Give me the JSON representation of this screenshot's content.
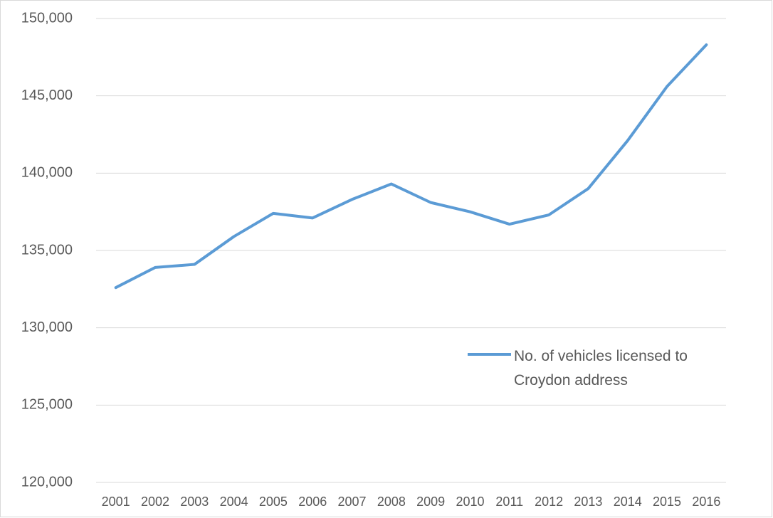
{
  "chart_data": {
    "type": "line",
    "categories": [
      "2001",
      "2002",
      "2003",
      "2004",
      "2005",
      "2006",
      "2007",
      "2008",
      "2009",
      "2010",
      "2011",
      "2012",
      "2013",
      "2014",
      "2015",
      "2016"
    ],
    "series": [
      {
        "name": "No. of vehicles licensed to Croydon address",
        "color": "#5b9bd5",
        "values": [
          132600,
          133900,
          134100,
          135900,
          137400,
          137100,
          138300,
          139300,
          138100,
          137500,
          136700,
          137300,
          139000,
          142100,
          145600,
          148300
        ]
      }
    ],
    "ylim": [
      120000,
      150000
    ],
    "yticks": [
      {
        "value": 120000,
        "label": "120,000"
      },
      {
        "value": 125000,
        "label": "125,000"
      },
      {
        "value": 130000,
        "label": "130,000"
      },
      {
        "value": 135000,
        "label": "135,000"
      },
      {
        "value": 140000,
        "label": "140,000"
      },
      {
        "value": 145000,
        "label": "145,000"
      },
      {
        "value": 150000,
        "label": "150,000"
      }
    ],
    "grid": true,
    "legend": "right"
  }
}
